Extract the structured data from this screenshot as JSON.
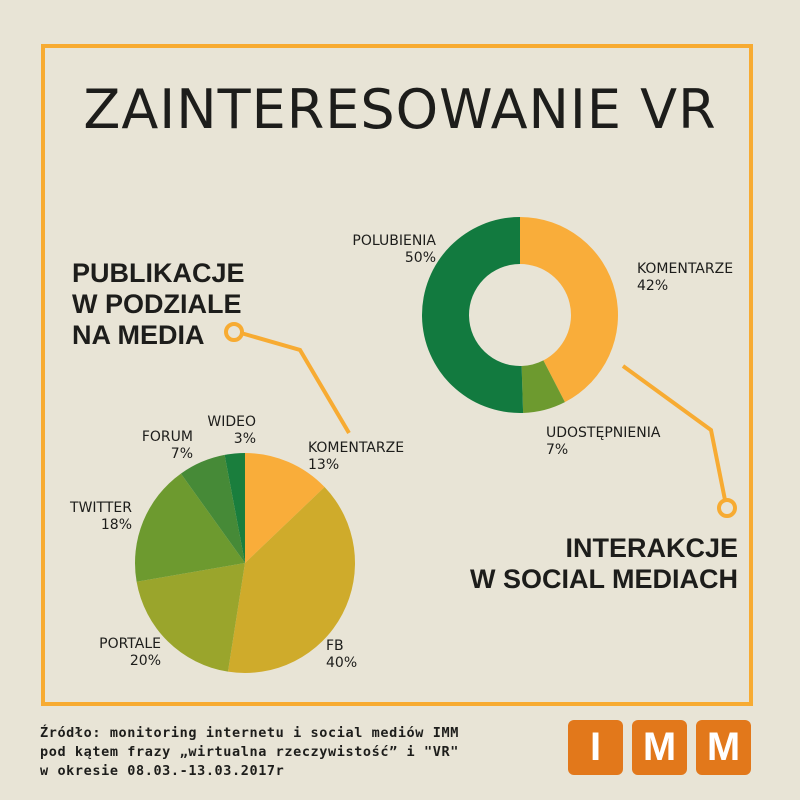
{
  "title": "ZAINTERESOWANIE VR",
  "heading_left": [
    "PUBLIKACJE",
    "W PODZIALE",
    "NA MEDIA"
  ],
  "heading_right": [
    "INTERAKCJE",
    "W SOCIAL MEDIACH"
  ],
  "source": [
    "Źródło: monitoring internetu i social mediów IMM",
    "pod kątem frazy „wirtualna rzeczywistość” i \"VR\"",
    "w okresie 08.03.-13.03.2017r"
  ],
  "logo": [
    "I",
    "M",
    "M"
  ],
  "colors": {
    "accent": "#f7ab32",
    "background": "#e8e4d6",
    "logo": "#e2781b"
  },
  "chart_data": [
    {
      "type": "pie",
      "title": "PUBLIKACJE W PODZIALE NA MEDIA",
      "unit": "%",
      "slices": [
        {
          "label": "KOMENTARZE",
          "value": 13,
          "color": "#f9ad3a"
        },
        {
          "label": "FB",
          "value": 40,
          "color": "#cfab2b"
        },
        {
          "label": "PORTALE",
          "value": 20,
          "color": "#9aa52c"
        },
        {
          "label": "TWITTER",
          "value": 18,
          "color": "#6d9a2f"
        },
        {
          "label": "FORUM",
          "value": 7,
          "color": "#468a37"
        },
        {
          "label": "WIDEO",
          "value": 3,
          "color": "#1a7e3d"
        }
      ]
    },
    {
      "type": "donut",
      "title": "INTERAKCJE W SOCIAL MEDIACH",
      "unit": "%",
      "slices": [
        {
          "label": "KOMENTARZE",
          "value": 42,
          "color": "#f9ad3a"
        },
        {
          "label": "UDOSTĘPNIENIA",
          "value": 7,
          "color": "#6d9a2f"
        },
        {
          "label": "POLUBIENIA",
          "value": 50,
          "color": "#127a3f"
        }
      ]
    }
  ]
}
